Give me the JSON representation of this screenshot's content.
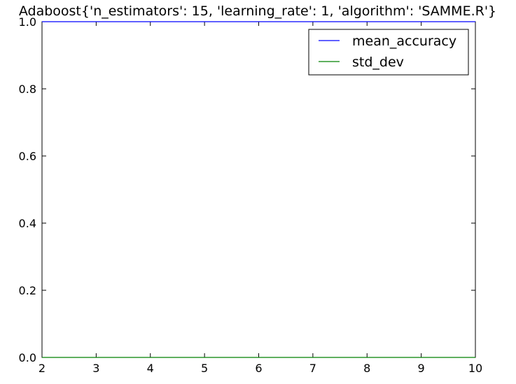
{
  "chart_data": {
    "type": "line",
    "title": "Adaboost{'n_estimators': 15, 'learning_rate': 1, 'algorithm': 'SAMME.R'}",
    "xlabel": "",
    "ylabel": "",
    "xlim": [
      2,
      10
    ],
    "ylim": [
      0.0,
      1.0
    ],
    "xticks": [
      "2",
      "3",
      "4",
      "5",
      "6",
      "7",
      "8",
      "9",
      "10"
    ],
    "yticks": [
      "0.0",
      "0.2",
      "0.4",
      "0.6",
      "0.8",
      "1.0"
    ],
    "grid": false,
    "legend_position": "upper right",
    "x": [
      2,
      3,
      4,
      5,
      6,
      7,
      8,
      9,
      10
    ],
    "series": [
      {
        "name": "mean_accuracy",
        "color": "#0000ff",
        "values": [
          1.0,
          1.0,
          1.0,
          1.0,
          1.0,
          1.0,
          1.0,
          1.0,
          1.0
        ]
      },
      {
        "name": "std_dev",
        "color": "#008000",
        "values": [
          0.0,
          0.0,
          0.0,
          0.0,
          0.0,
          0.0,
          0.0,
          0.0,
          0.0
        ]
      }
    ]
  }
}
